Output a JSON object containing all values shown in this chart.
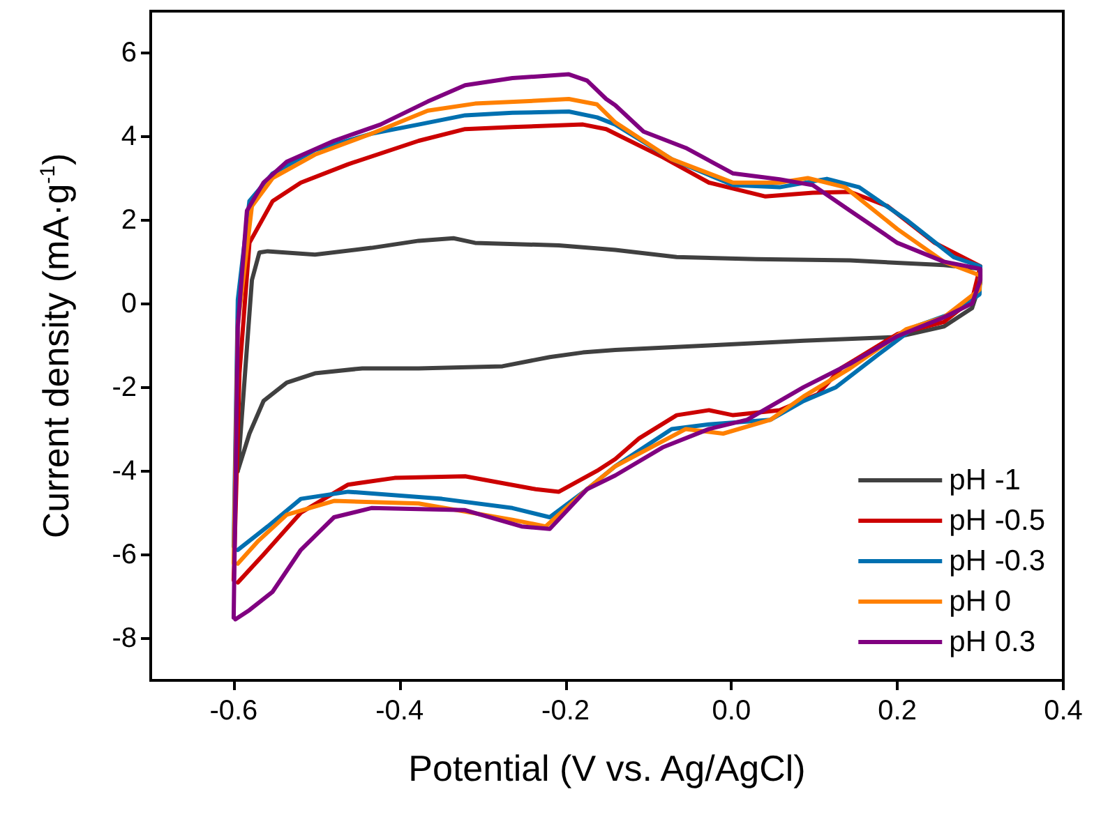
{
  "chart_data": {
    "type": "line",
    "xlabel": "Potential (V vs. Ag/AgCl)",
    "ylabel": "Current density (mA·g$^{-1}$)",
    "xlim": [
      -0.7,
      0.4
    ],
    "xticks": [
      -0.6,
      -0.4,
      -0.2,
      {
        "value": 0,
        "label": "0.0"
      },
      0.2,
      0.4
    ],
    "ylim": [
      -9,
      7
    ],
    "yticks": [
      -8,
      -6,
      -4,
      -2,
      0,
      2,
      4,
      6
    ],
    "grid": false,
    "legend": "bottom right",
    "marker": "none",
    "line_style": "solid",
    "series": [
      {
        "name": "pH -1",
        "color": "#404040",
        "x": [
          -0.595,
          -0.578,
          -0.569,
          -0.559,
          -0.502,
          -0.434,
          -0.377,
          -0.335,
          -0.309,
          -0.208,
          -0.14,
          -0.066,
          0.03,
          0.143,
          0.256,
          0.3,
          0.3,
          0.29,
          0.256,
          0.2,
          0.087,
          -0.027,
          -0.14,
          -0.179,
          -0.219,
          -0.276,
          -0.377,
          -0.445,
          -0.502,
          -0.536,
          -0.564,
          -0.581,
          -0.595
        ],
        "values": [
          -4.0,
          0.57,
          1.23,
          1.26,
          1.18,
          1.34,
          1.51,
          1.57,
          1.46,
          1.4,
          1.29,
          1.12,
          1.07,
          1.04,
          0.93,
          0.84,
          0.5,
          -0.1,
          -0.54,
          -0.79,
          -0.88,
          -0.99,
          -1.1,
          -1.16,
          -1.27,
          -1.49,
          -1.54,
          -1.54,
          -1.66,
          -1.88,
          -2.32,
          -3.1,
          -3.99
        ]
      },
      {
        "name": "pH -0.5",
        "color": "#cc0000",
        "x": [
          -0.6,
          -0.593,
          -0.581,
          -0.553,
          -0.519,
          -0.462,
          -0.377,
          -0.321,
          -0.264,
          -0.179,
          -0.151,
          -0.14,
          -0.083,
          -0.027,
          0.041,
          0.098,
          0.143,
          0.188,
          0.245,
          0.3,
          0.29,
          0.256,
          0.2,
          0.132,
          0.104,
          0.058,
          0.002,
          -0.027,
          -0.066,
          -0.111,
          -0.14,
          -0.162,
          -0.208,
          -0.236,
          -0.321,
          -0.406,
          -0.462,
          -0.519,
          -0.564,
          -0.595
        ],
        "values": [
          -6.6,
          -1.66,
          1.46,
          2.46,
          2.9,
          3.34,
          3.9,
          4.18,
          4.23,
          4.29,
          4.18,
          4.07,
          3.51,
          2.9,
          2.57,
          2.66,
          2.68,
          2.34,
          1.46,
          0.9,
          0.1,
          -0.43,
          -0.72,
          -1.54,
          -2.16,
          -2.54,
          -2.66,
          -2.54,
          -2.66,
          -3.21,
          -3.71,
          -3.99,
          -4.49,
          -4.43,
          -4.12,
          -4.16,
          -4.32,
          -4.99,
          -5.99,
          -6.66
        ]
      },
      {
        "name": "pH -0.3",
        "color": "#0070b0",
        "x": [
          -0.6,
          -0.595,
          -0.581,
          -0.553,
          -0.502,
          -0.434,
          -0.377,
          -0.321,
          -0.264,
          -0.196,
          -0.162,
          -0.14,
          -0.072,
          0.002,
          0.058,
          0.115,
          0.154,
          0.211,
          0.268,
          0.3,
          0.299,
          0.268,
          0.222,
          0.177,
          0.126,
          0.087,
          0.047,
          -0.027,
          -0.072,
          -0.14,
          -0.174,
          -0.219,
          -0.264,
          -0.349,
          -0.462,
          -0.519,
          -0.559,
          -0.595
        ],
        "values": [
          -5.8,
          0.1,
          2.46,
          3.12,
          3.68,
          4.07,
          4.29,
          4.51,
          4.57,
          4.6,
          4.46,
          4.29,
          3.46,
          2.84,
          2.79,
          2.99,
          2.79,
          2.01,
          1.12,
          0.9,
          0.23,
          -0.21,
          -0.54,
          -1.21,
          -1.99,
          -2.32,
          -2.77,
          -2.88,
          -2.99,
          -3.88,
          -4.43,
          -5.1,
          -4.88,
          -4.66,
          -4.49,
          -4.66,
          -5.32,
          -5.88
        ]
      },
      {
        "name": "pH 0",
        "color": "#ff8000",
        "x": [
          -0.6,
          -0.595,
          -0.578,
          -0.553,
          -0.502,
          -0.434,
          -0.366,
          -0.309,
          -0.253,
          -0.196,
          -0.162,
          -0.14,
          -0.072,
          0.002,
          0.058,
          0.092,
          0.137,
          0.2,
          0.256,
          0.3,
          0.299,
          0.256,
          0.211,
          0.143,
          0.087,
          0.047,
          -0.01,
          -0.055,
          -0.14,
          -0.174,
          -0.224,
          -0.264,
          -0.377,
          -0.479,
          -0.536,
          -0.57,
          -0.595
        ],
        "values": [
          -6.2,
          -0.5,
          2.34,
          3.01,
          3.57,
          4.07,
          4.62,
          4.79,
          4.84,
          4.9,
          4.77,
          4.34,
          3.46,
          2.9,
          2.9,
          3.01,
          2.79,
          1.79,
          1.01,
          0.68,
          0.34,
          -0.32,
          -0.6,
          -1.54,
          -2.21,
          -2.77,
          -3.1,
          -2.99,
          -3.88,
          -4.43,
          -5.32,
          -5.16,
          -4.77,
          -4.71,
          -5.04,
          -5.66,
          -6.21
        ]
      },
      {
        "name": "pH 0.3",
        "color": "#800080",
        "x": [
          -0.6,
          -0.595,
          -0.584,
          -0.564,
          -0.536,
          -0.479,
          -0.423,
          -0.366,
          -0.321,
          -0.264,
          -0.196,
          -0.174,
          -0.151,
          -0.14,
          -0.106,
          -0.055,
          0.002,
          0.058,
          0.098,
          0.143,
          0.2,
          0.256,
          0.3,
          0.3,
          0.29,
          0.256,
          0.2,
          0.143,
          0.087,
          0.019,
          -0.027,
          -0.083,
          -0.14,
          -0.174,
          -0.219,
          -0.253,
          -0.321,
          -0.434,
          -0.479,
          -0.519,
          -0.553,
          -0.581,
          -0.598
        ],
        "values": [
          -7.5,
          -0.54,
          2.23,
          2.9,
          3.4,
          3.9,
          4.29,
          4.84,
          5.23,
          5.4,
          5.49,
          5.34,
          4.9,
          4.75,
          4.12,
          3.73,
          3.12,
          2.98,
          2.84,
          2.23,
          1.46,
          1.01,
          0.84,
          0.57,
          0.01,
          -0.32,
          -0.77,
          -1.43,
          -1.99,
          -2.77,
          -2.99,
          -3.43,
          -4.1,
          -4.43,
          -5.38,
          -5.32,
          -4.93,
          -4.88,
          -5.1,
          -5.88,
          -6.88,
          -7.32,
          -7.54
        ]
      }
    ]
  }
}
